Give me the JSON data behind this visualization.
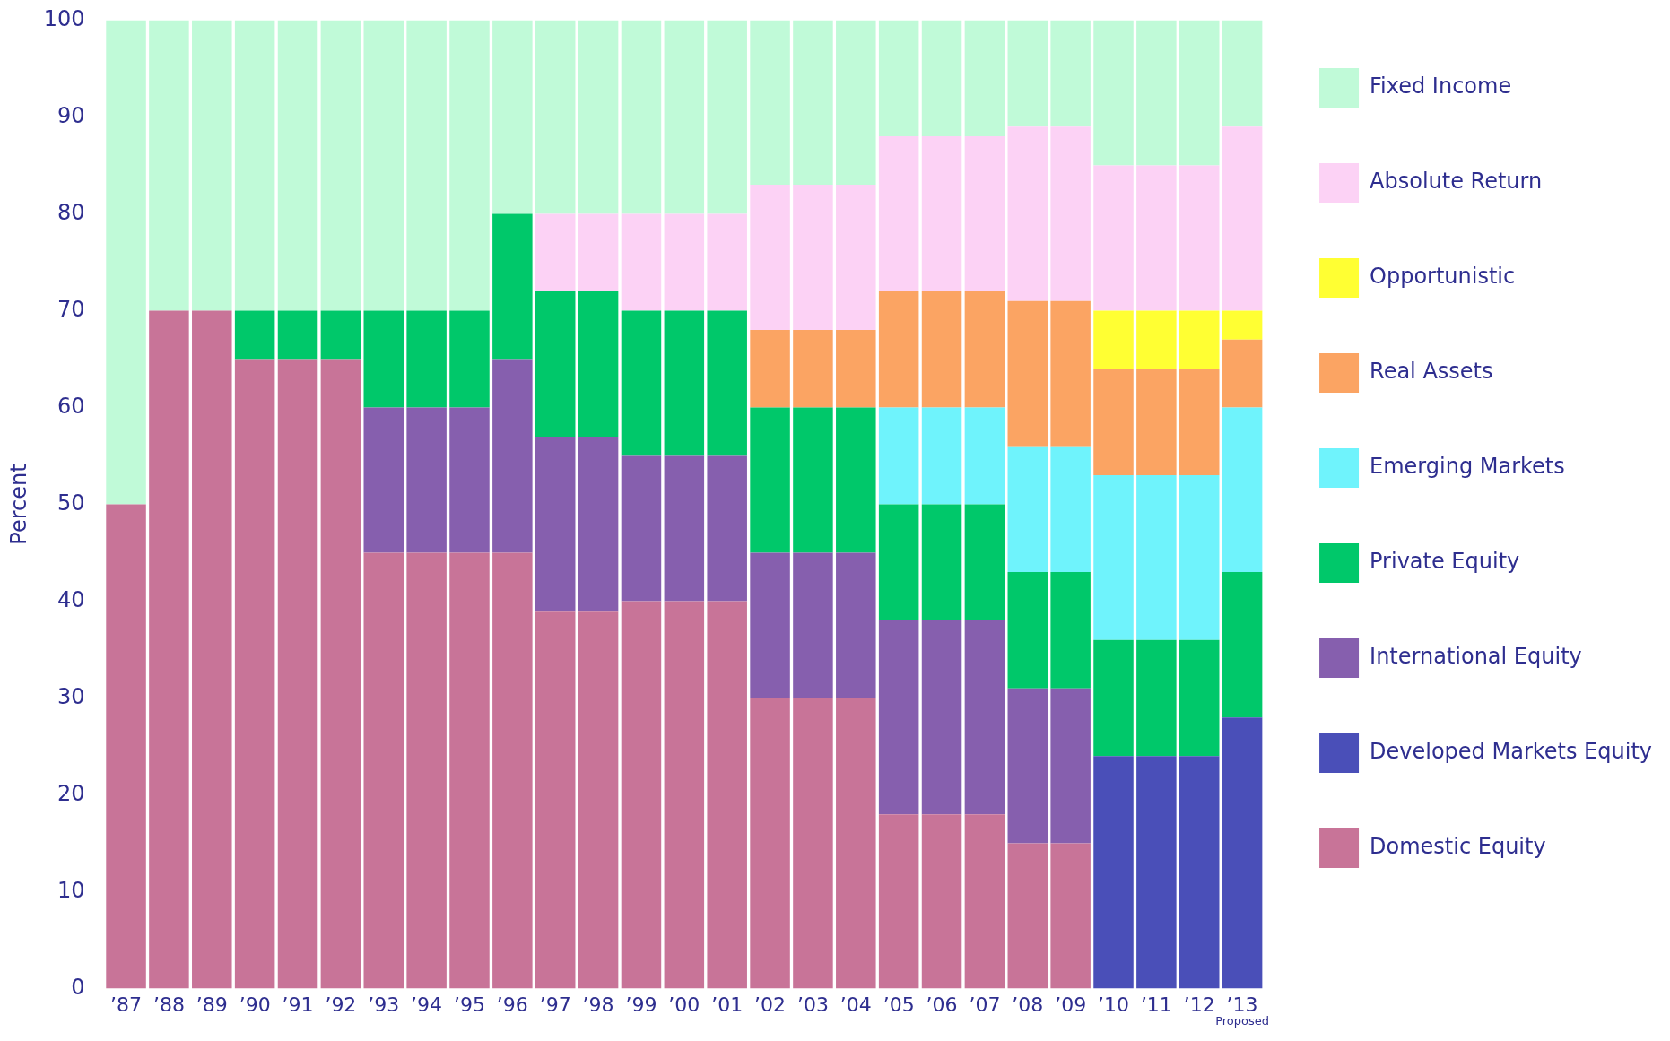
{
  "chart_data": {
    "type": "bar",
    "stacked": true,
    "ylabel": "Percent",
    "categories": [
      "’87",
      "’88",
      "’89",
      "’90",
      "’91",
      "’92",
      "’93",
      "’94",
      "’95",
      "’96",
      "’97",
      "’98",
      "’99",
      "’00",
      "’01",
      "’02",
      "’03",
      "’04",
      "’05",
      "’06",
      "’07",
      "’08",
      "’09",
      "’10",
      "’11",
      "’12",
      "’13"
    ],
    "series": [
      {
        "name": "Domestic Equity",
        "color": "#c87498",
        "values": [
          50,
          70,
          70,
          65,
          65,
          65,
          45,
          45,
          45,
          45,
          39,
          39,
          40,
          40,
          40,
          30,
          30,
          30,
          18,
          18,
          18,
          15,
          15,
          null,
          null,
          null,
          null
        ]
      },
      {
        "name": "Developed Markets Equity",
        "color": "#4a4fb8",
        "values": [
          null,
          null,
          null,
          null,
          null,
          null,
          null,
          null,
          null,
          null,
          null,
          null,
          null,
          null,
          null,
          null,
          null,
          null,
          null,
          null,
          null,
          null,
          null,
          24,
          24,
          24,
          28
        ]
      },
      {
        "name": "International Equity",
        "color": "#865fae",
        "values": [
          null,
          null,
          null,
          null,
          null,
          null,
          15,
          15,
          15,
          20,
          18,
          18,
          15,
          15,
          15,
          15,
          15,
          15,
          20,
          20,
          20,
          16,
          16,
          null,
          null,
          null,
          null
        ]
      },
      {
        "name": "Private Equity",
        "color": "#00c86a",
        "values": [
          null,
          null,
          null,
          5,
          5,
          5,
          10,
          10,
          10,
          15,
          15,
          15,
          15,
          15,
          15,
          15,
          15,
          15,
          12,
          12,
          12,
          12,
          12,
          12,
          12,
          12,
          15
        ]
      },
      {
        "name": "Emerging Markets",
        "color": "#6ff3fc",
        "values": [
          null,
          null,
          null,
          null,
          null,
          null,
          null,
          null,
          null,
          null,
          null,
          null,
          null,
          null,
          null,
          null,
          null,
          null,
          10,
          10,
          10,
          13,
          13,
          17,
          17,
          17,
          17
        ]
      },
      {
        "name": "Real Assets",
        "color": "#fba463",
        "values": [
          null,
          null,
          null,
          null,
          null,
          null,
          null,
          null,
          null,
          null,
          null,
          null,
          null,
          null,
          null,
          8,
          8,
          8,
          12,
          12,
          12,
          15,
          15,
          11,
          11,
          11,
          7
        ]
      },
      {
        "name": "Opportunistic",
        "color": "#ffff33",
        "values": [
          null,
          null,
          null,
          null,
          null,
          null,
          null,
          null,
          null,
          null,
          null,
          null,
          null,
          null,
          null,
          null,
          null,
          null,
          null,
          null,
          null,
          null,
          null,
          6,
          6,
          6,
          3
        ]
      },
      {
        "name": "Absolute Return",
        "color": "#fcd2f5",
        "values": [
          null,
          null,
          null,
          null,
          null,
          null,
          null,
          null,
          null,
          null,
          8,
          8,
          10,
          10,
          10,
          15,
          15,
          15,
          16,
          16,
          16,
          18,
          18,
          15,
          15,
          15,
          19
        ]
      },
      {
        "name": "Fixed Income",
        "color": "#c0fad8",
        "values": [
          50,
          30,
          30,
          30,
          30,
          30,
          30,
          30,
          30,
          20,
          20,
          20,
          20,
          20,
          20,
          17,
          17,
          17,
          12,
          12,
          12,
          11,
          11,
          15,
          15,
          15,
          11
        ]
      }
    ],
    "ylim": [
      0,
      100
    ],
    "yticks": [
      0,
      10,
      20,
      30,
      40,
      50,
      60,
      70,
      80,
      90,
      100
    ],
    "grid": false,
    "legend": "right",
    "annotations": [
      "Proposed"
    ]
  }
}
